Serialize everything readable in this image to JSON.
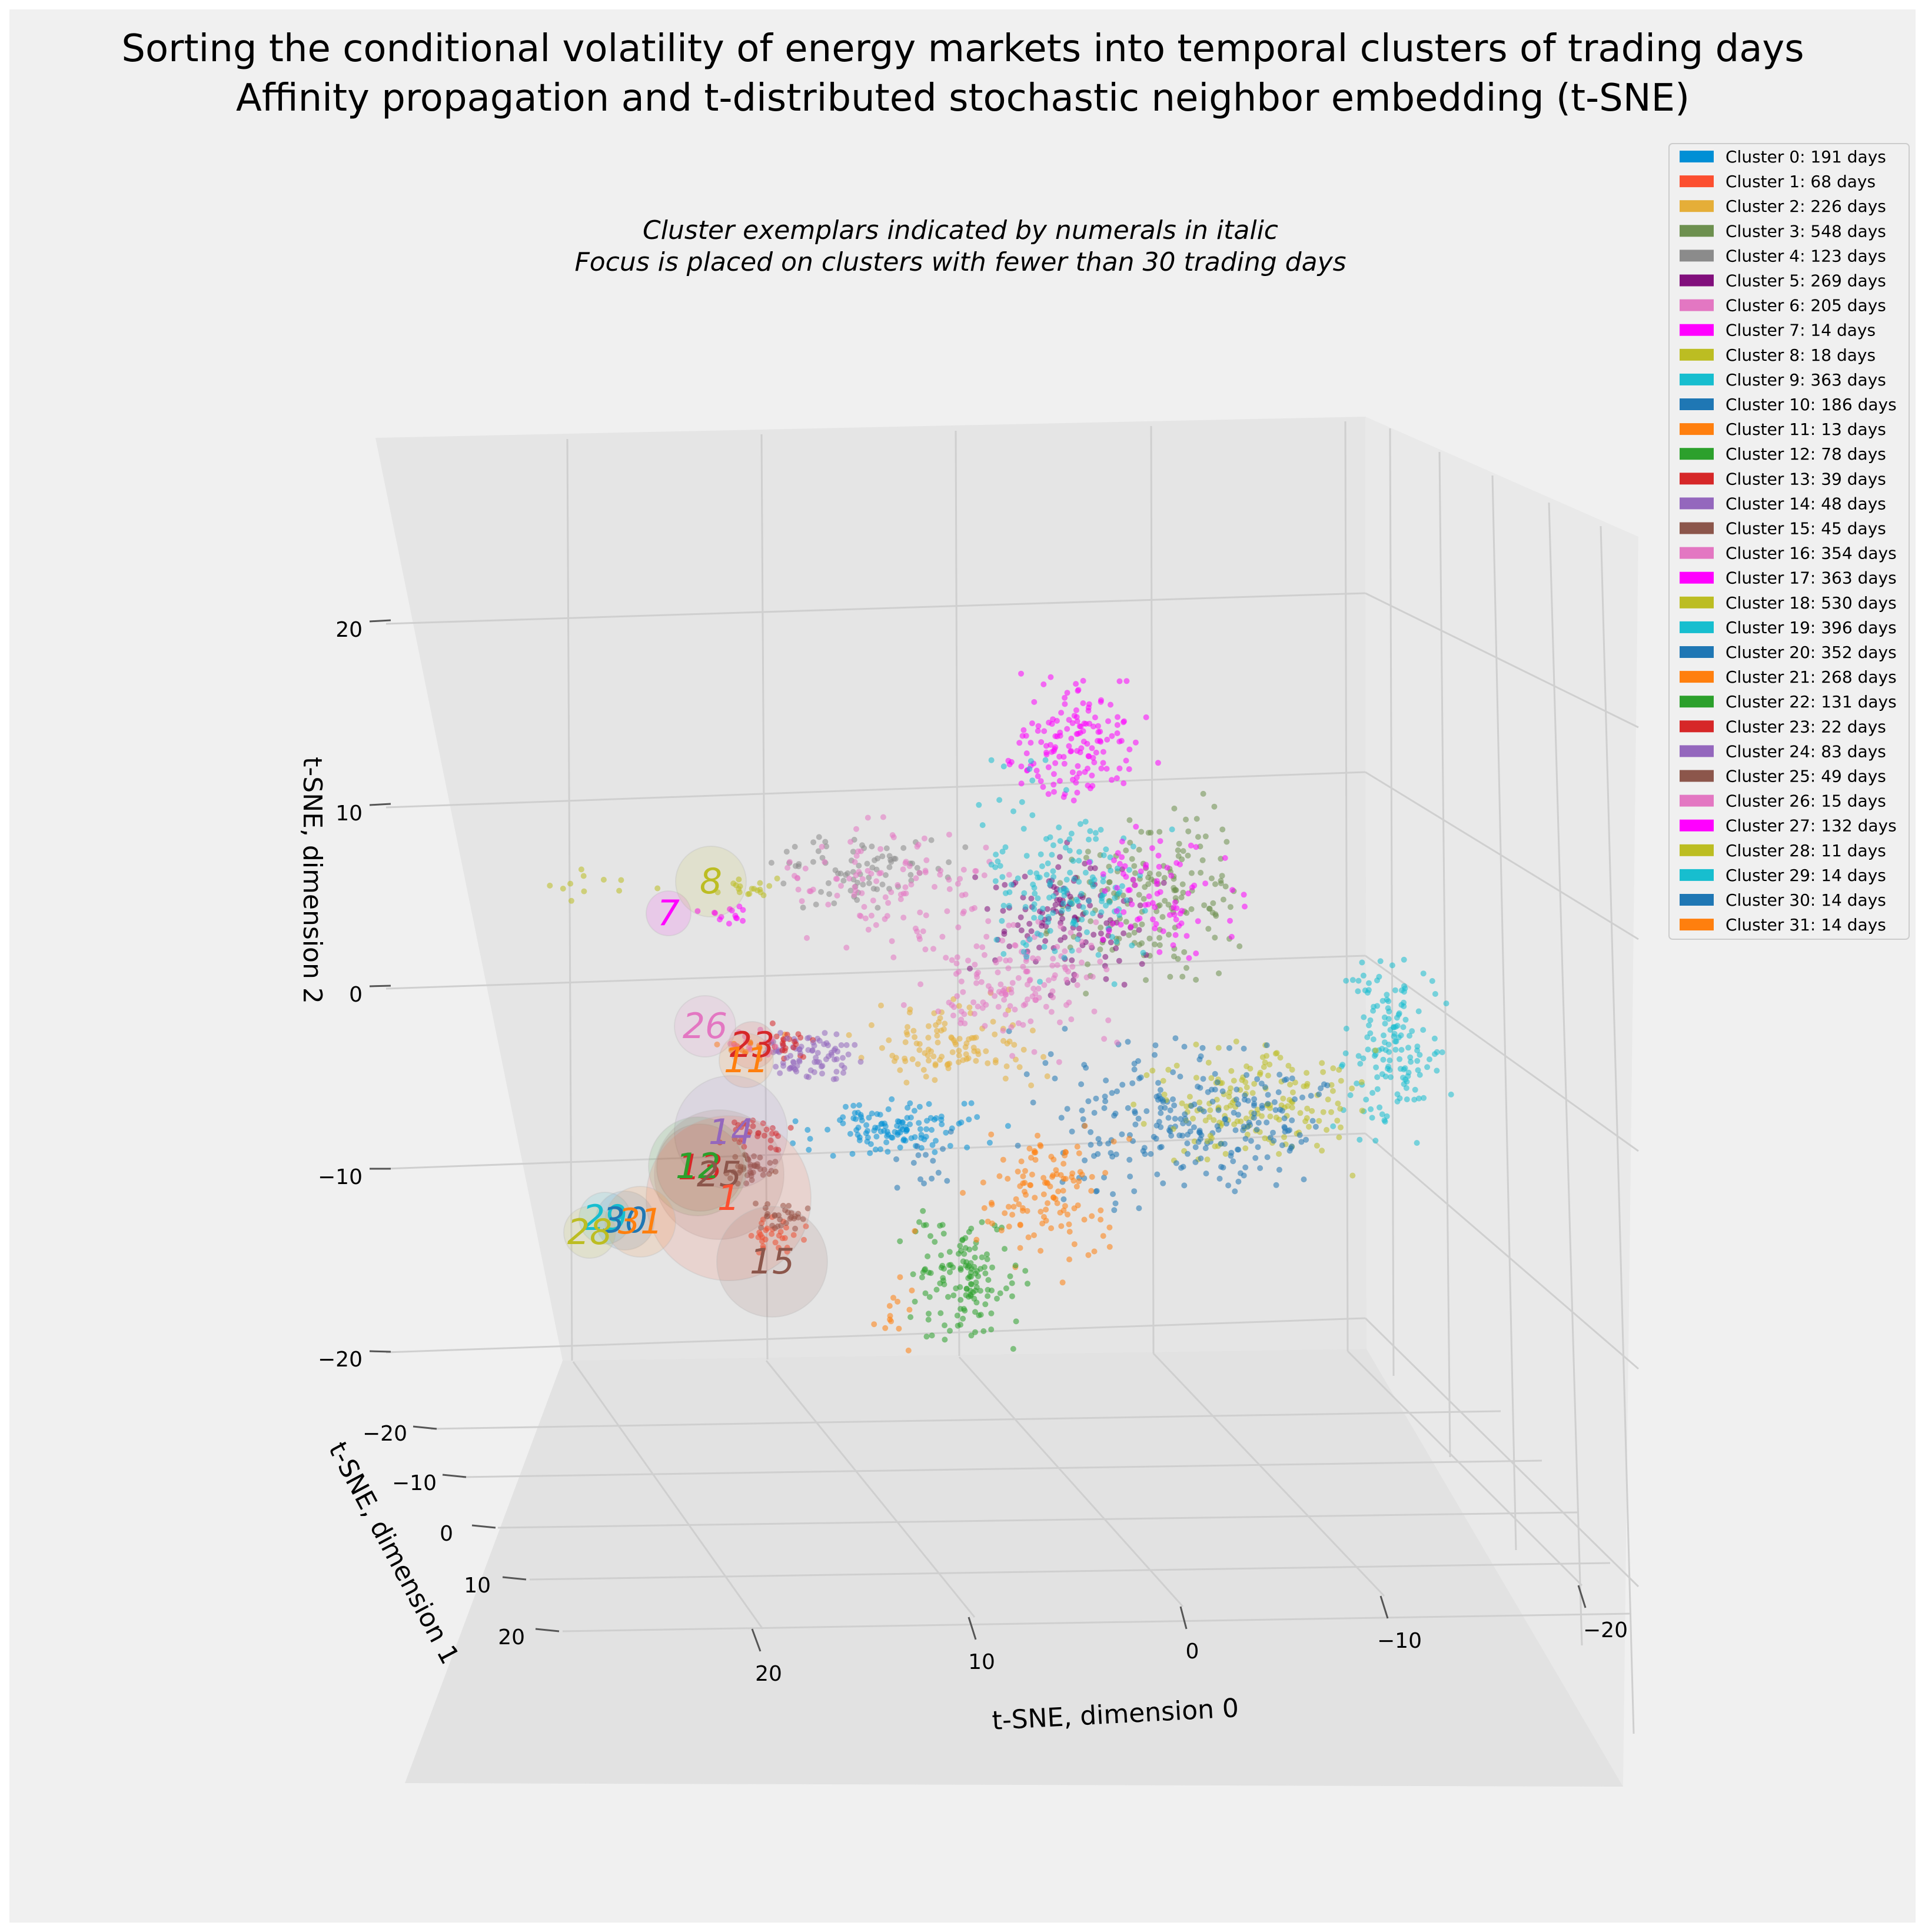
{
  "chart_data": {
    "type": "scatter",
    "projection": "3d",
    "title": [
      "Sorting the conditional volatility of energy markets into temporal clusters of trading days",
      "Affinity propagation and t-distributed stochastic neighbor embedding (t-SNE)"
    ],
    "subtitle": [
      "Cluster exemplars indicated by numerals in italic",
      "Focus is placed on clusters with fewer than 30 trading days"
    ],
    "axes": {
      "x": {
        "label": "t-SNE, dimension 0",
        "ticks": [
          "20",
          "10",
          "0",
          "−10",
          "−20"
        ],
        "lim": [
          25,
          -25
        ]
      },
      "y": {
        "label": "t-SNE, dimension 1",
        "ticks": [
          "−20",
          "−10",
          "0",
          "10",
          "20"
        ],
        "lim": [
          -25,
          25
        ]
      },
      "z": {
        "label": "t-SNE, dimension 2",
        "ticks": [
          "20",
          "10",
          "0",
          "−10",
          "−20"
        ],
        "lim": [
          -25,
          25
        ]
      }
    },
    "legend": {
      "position": "top-right",
      "entries": [
        {
          "label": "Cluster 0: 191 days",
          "color": "#008fd5"
        },
        {
          "label": "Cluster 1: 68 days",
          "color": "#fc4f30"
        },
        {
          "label": "Cluster 2: 226 days",
          "color": "#e5ae38"
        },
        {
          "label": "Cluster 3: 548 days",
          "color": "#6d904f"
        },
        {
          "label": "Cluster 4: 123 days",
          "color": "#8b8b8b"
        },
        {
          "label": "Cluster 5: 269 days",
          "color": "#810f7c"
        },
        {
          "label": "Cluster 6: 205 days",
          "color": "#e377c2"
        },
        {
          "label": "Cluster 7: 14 days",
          "color": "#ff00ff"
        },
        {
          "label": "Cluster 8: 18 days",
          "color": "#bcbd22"
        },
        {
          "label": "Cluster 9: 363 days",
          "color": "#17becf"
        },
        {
          "label": "Cluster 10: 186 days",
          "color": "#1f77b4"
        },
        {
          "label": "Cluster 11: 13 days",
          "color": "#ff7f0e"
        },
        {
          "label": "Cluster 12: 78 days",
          "color": "#2ca02c"
        },
        {
          "label": "Cluster 13: 39 days",
          "color": "#d62728"
        },
        {
          "label": "Cluster 14: 48 days",
          "color": "#9467bd"
        },
        {
          "label": "Cluster 15: 45 days",
          "color": "#8c564b"
        },
        {
          "label": "Cluster 16: 354 days",
          "color": "#e377c2"
        },
        {
          "label": "Cluster 17: 363 days",
          "color": "#ff00ff"
        },
        {
          "label": "Cluster 18: 530 days",
          "color": "#bcbd22"
        },
        {
          "label": "Cluster 19: 396 days",
          "color": "#17becf"
        },
        {
          "label": "Cluster 20: 352 days",
          "color": "#1f77b4"
        },
        {
          "label": "Cluster 21: 268 days",
          "color": "#ff7f0e"
        },
        {
          "label": "Cluster 22: 131 days",
          "color": "#2ca02c"
        },
        {
          "label": "Cluster 23: 22 days",
          "color": "#d62728"
        },
        {
          "label": "Cluster 24: 83 days",
          "color": "#9467bd"
        },
        {
          "label": "Cluster 25: 49 days",
          "color": "#8c564b"
        },
        {
          "label": "Cluster 26: 15 days",
          "color": "#e377c2"
        },
        {
          "label": "Cluster 27: 132 days",
          "color": "#ff00ff"
        },
        {
          "label": "Cluster 28: 11 days",
          "color": "#bcbd22"
        },
        {
          "label": "Cluster 29: 14 days",
          "color": "#17becf"
        },
        {
          "label": "Cluster 30: 14 days",
          "color": "#1f77b4"
        },
        {
          "label": "Cluster 31: 14 days",
          "color": "#ff7f0e"
        }
      ]
    },
    "exemplars": [
      {
        "label": "7",
        "cluster": 7
      },
      {
        "label": "8",
        "cluster": 8
      },
      {
        "label": "26",
        "cluster": 26
      },
      {
        "label": "23",
        "cluster": 23
      },
      {
        "label": "11",
        "cluster": 11
      },
      {
        "label": "14",
        "cluster": 14
      },
      {
        "label": "13",
        "cluster": 13
      },
      {
        "label": "12",
        "cluster": 12
      },
      {
        "label": "25",
        "cluster": 25
      },
      {
        "label": "1",
        "cluster": 1
      },
      {
        "label": "29",
        "cluster": 29
      },
      {
        "label": "30",
        "cluster": 30
      },
      {
        "label": "31",
        "cluster": 31
      },
      {
        "label": "28",
        "cluster": 28
      },
      {
        "label": "15",
        "cluster": 15
      }
    ]
  }
}
